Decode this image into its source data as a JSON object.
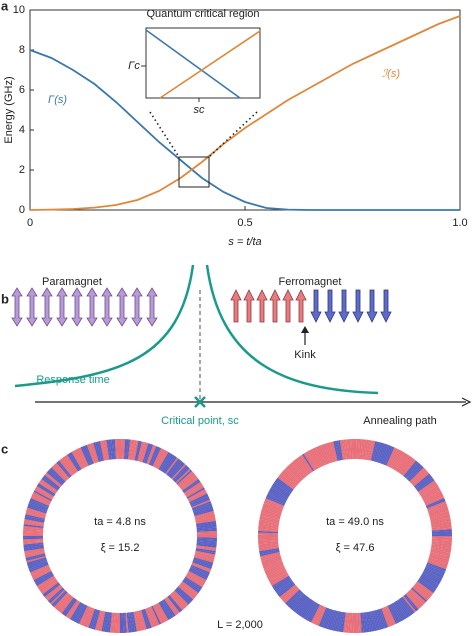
{
  "chart_data": {
    "type": "line",
    "x": [
      0,
      0.05,
      0.1,
      0.15,
      0.2,
      0.25,
      0.3,
      0.35,
      0.4,
      0.45,
      0.5,
      0.55,
      0.6,
      0.65,
      0.7,
      0.75,
      0.8,
      0.85,
      0.9,
      0.95,
      1
    ],
    "series": [
      {
        "name": "Γ(s)",
        "color": "#3a78b0",
        "values": [
          8,
          7.6,
          7.0,
          6.3,
          5.4,
          4.4,
          3.4,
          2.5,
          1.6,
          0.9,
          0.4,
          0.1,
          0.02,
          0,
          0,
          0,
          0,
          0,
          0,
          0,
          0
        ]
      },
      {
        "name": "ℐ(s)",
        "color": "#e0873a",
        "values": [
          0,
          0.02,
          0.05,
          0.12,
          0.25,
          0.5,
          0.95,
          1.6,
          2.4,
          3.3,
          4.1,
          4.8,
          5.5,
          6.1,
          6.7,
          7.3,
          7.8,
          8.3,
          8.8,
          9.3,
          9.7
        ]
      }
    ],
    "xlim": [
      0,
      1
    ],
    "ylim": [
      0,
      10
    ],
    "xticks": [
      0,
      0.5,
      {
        "value": 1,
        "label": "1.0"
      }
    ],
    "yticks": [
      0,
      2,
      4,
      6,
      8,
      10
    ],
    "xlabel": "s = t/ta",
    "ylabel": "Energy (GHz)",
    "inset": {
      "title": "Quantum critical region",
      "ylabel": "Γc",
      "xlabel": "sc"
    }
  },
  "panel_labels": [
    "a",
    "b",
    "c"
  ],
  "diagram": {
    "left_phase": "Paramagnet",
    "right_phase": "Ferromagnet",
    "kink": "Kink",
    "curve_label": "Response time",
    "critical_point": "Critical point, sc",
    "axis_label": "Annealing path"
  },
  "rings": [
    {
      "time": "ta = 4.8 ns",
      "xi": "ξ = 15.2"
    },
    {
      "time": "ta = 49.0 ns",
      "xi": "ξ = 47.6"
    }
  ],
  "size": "L = 2,000"
}
